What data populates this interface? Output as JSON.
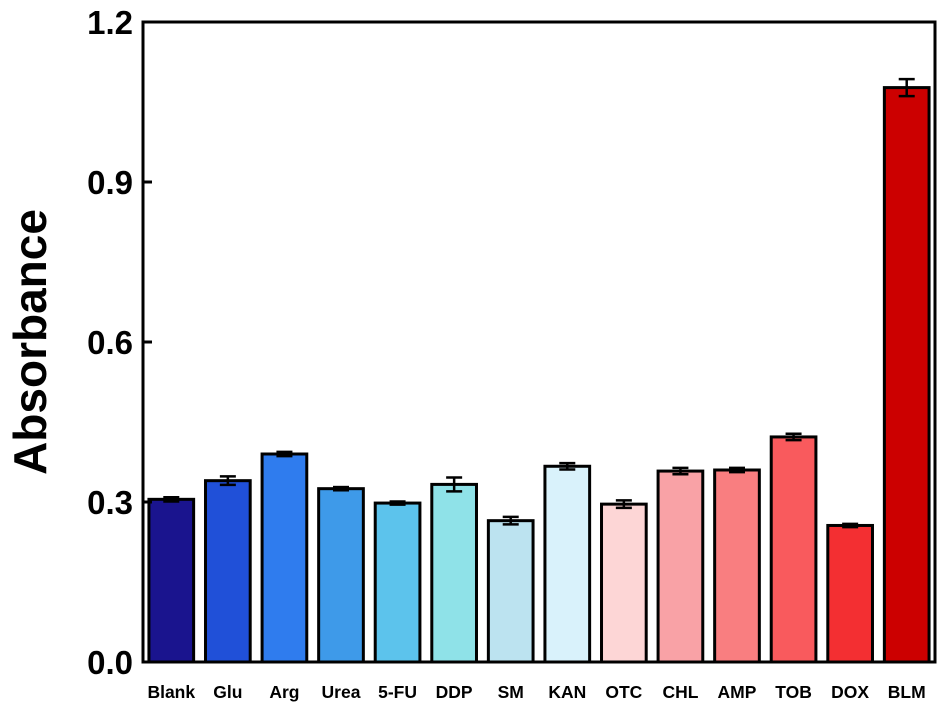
{
  "chart_data": {
    "type": "bar",
    "title": "",
    "xlabel": "",
    "ylabel": "Absorbance",
    "ylim": [
      0,
      1.2
    ],
    "yticks": [
      "0.0",
      "0.3",
      "0.6",
      "0.9",
      "1.2"
    ],
    "grid": false,
    "categories": [
      "Blank",
      "Glu",
      "Arg",
      "Urea",
      "5-FU",
      "DDP",
      "SM",
      "KAN",
      "OTC",
      "CHL",
      "AMP",
      "TOB",
      "DOX",
      "BLM"
    ],
    "values": [
      0.305,
      0.34,
      0.39,
      0.325,
      0.298,
      0.333,
      0.265,
      0.367,
      0.296,
      0.358,
      0.36,
      0.422,
      0.256,
      1.077
    ],
    "errors": [
      0.004,
      0.008,
      0.004,
      0.003,
      0.003,
      0.013,
      0.007,
      0.006,
      0.007,
      0.006,
      0.004,
      0.006,
      0.003,
      0.016
    ],
    "colors": [
      "#1a148e",
      "#2050d8",
      "#2f7cee",
      "#3e9ae9",
      "#5cc3ec",
      "#8fe2e8",
      "#bce3f0",
      "#d9f2fb",
      "#fdd6d6",
      "#f9a2a6",
      "#f97e80",
      "#f95a5d",
      "#f32f32",
      "#cc0000"
    ]
  }
}
